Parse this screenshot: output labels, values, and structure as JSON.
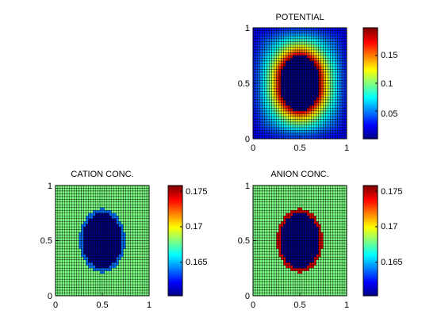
{
  "chart_data": [
    {
      "type": "heatmap",
      "title": "POTENTIAL",
      "xlim": [
        0,
        1
      ],
      "ylim": [
        0,
        1
      ],
      "xticks": [
        "0",
        "0.5",
        "1"
      ],
      "yticks": [
        "0",
        "0.5",
        "1"
      ],
      "grid": true,
      "grid_size": 40,
      "colormap": "jet",
      "colorbar_range": [
        0.0,
        0.2
      ],
      "colorbar_ticks": [
        "0.05",
        "0.1",
        "0.15"
      ],
      "field": {
        "center": [
          0.5,
          0.5
        ],
        "inclusion_radii": [
          0.21,
          0.25
        ],
        "inclusion_value": 0.0,
        "boundary_peak": 0.19,
        "outer_edge_value": 0.015
      }
    },
    {
      "type": "heatmap",
      "title": "CATION CONC.",
      "xlim": [
        0,
        1
      ],
      "ylim": [
        0,
        1
      ],
      "xticks": [
        "0",
        "0.5",
        "1"
      ],
      "yticks": [
        "0",
        "0.5",
        "1"
      ],
      "grid": true,
      "grid_size": 40,
      "colormap": "jet",
      "colorbar_range": [
        0.1603,
        0.1758
      ],
      "colorbar_ticks": [
        "0.165",
        "0.17",
        "0.175"
      ],
      "field": {
        "center": [
          0.5,
          0.5
        ],
        "inclusion_radii": [
          0.21,
          0.25
        ],
        "inclusion_value": 0.1603,
        "bulk_value": 0.168,
        "boundary_value": 0.164
      }
    },
    {
      "type": "heatmap",
      "title": "ANION CONC.",
      "xlim": [
        0,
        1
      ],
      "ylim": [
        0,
        1
      ],
      "xticks": [
        "0",
        "0.5",
        "1"
      ],
      "yticks": [
        "0",
        "0.5",
        "1"
      ],
      "grid": true,
      "grid_size": 40,
      "colormap": "jet",
      "colorbar_range": [
        0.1603,
        0.1758
      ],
      "colorbar_ticks": [
        "0.165",
        "0.17",
        "0.175"
      ],
      "field": {
        "center": [
          0.5,
          0.5
        ],
        "inclusion_radii": [
          0.21,
          0.25
        ],
        "inclusion_value": 0.1603,
        "bulk_value": 0.168,
        "boundary_value": 0.1745
      }
    }
  ]
}
